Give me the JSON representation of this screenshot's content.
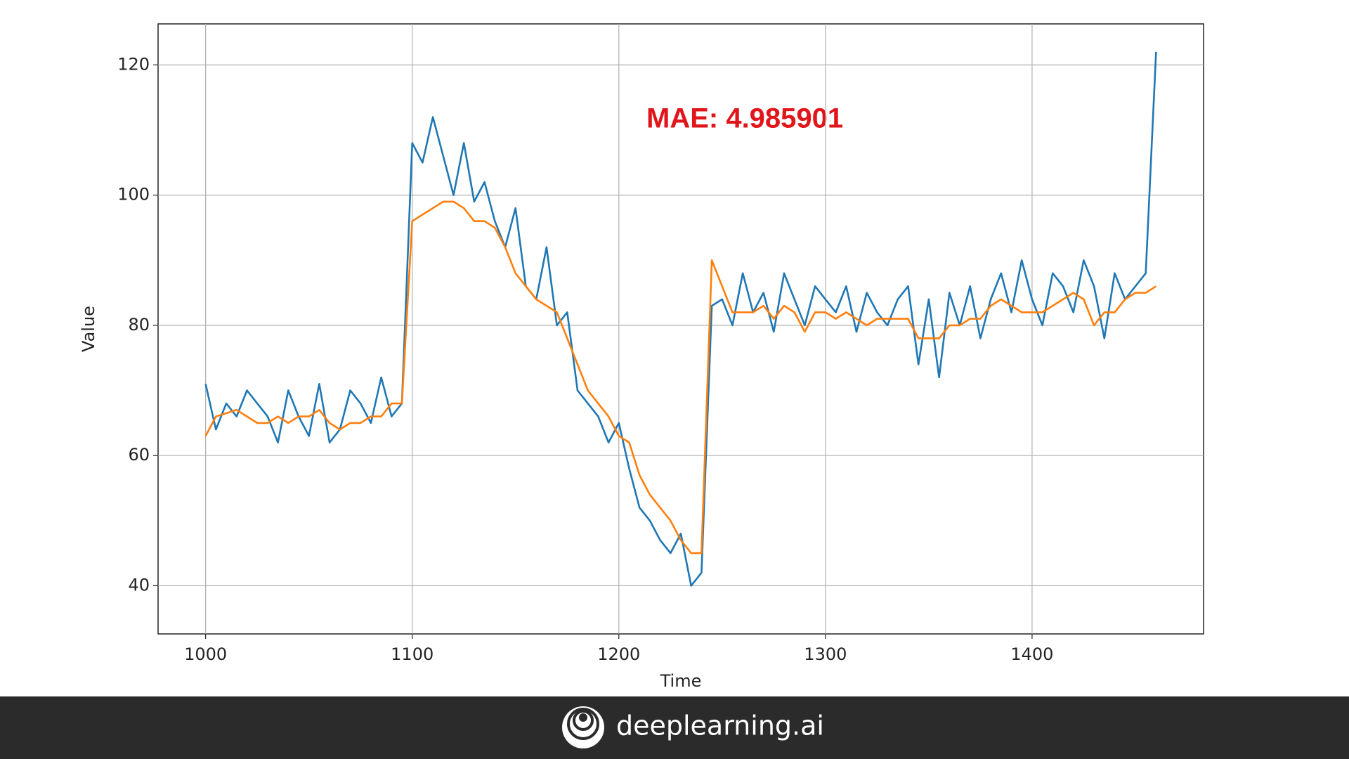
{
  "chart_data": {
    "type": "line",
    "annotation": "MAE: 4.985901",
    "xlabel": "Time",
    "ylabel": "Value",
    "x": [
      1000,
      1005,
      1010,
      1015,
      1020,
      1025,
      1030,
      1035,
      1040,
      1045,
      1050,
      1055,
      1060,
      1065,
      1070,
      1075,
      1080,
      1085,
      1090,
      1095,
      1100,
      1105,
      1110,
      1115,
      1120,
      1125,
      1130,
      1135,
      1140,
      1145,
      1150,
      1155,
      1160,
      1165,
      1170,
      1175,
      1180,
      1185,
      1190,
      1195,
      1200,
      1205,
      1210,
      1215,
      1220,
      1225,
      1230,
      1235,
      1240,
      1245,
      1250,
      1255,
      1260,
      1265,
      1270,
      1275,
      1280,
      1285,
      1290,
      1295,
      1300,
      1305,
      1310,
      1315,
      1320,
      1325,
      1330,
      1335,
      1340,
      1345,
      1350,
      1355,
      1360,
      1365,
      1370,
      1375,
      1380,
      1385,
      1390,
      1395,
      1400,
      1405,
      1410,
      1415,
      1420,
      1425,
      1430,
      1435,
      1440,
      1445,
      1450,
      1455,
      1460
    ],
    "series": [
      {
        "color": "#1f77b4",
        "values": [
          71,
          64,
          68,
          66,
          70,
          68,
          66,
          62,
          70,
          66,
          63,
          71,
          62,
          64,
          70,
          68,
          65,
          72,
          66,
          68,
          108,
          105,
          112,
          106,
          100,
          108,
          99,
          102,
          96,
          92,
          98,
          86,
          84,
          92,
          80,
          82,
          70,
          68,
          66,
          62,
          65,
          58,
          52,
          50,
          47,
          45,
          48,
          40,
          42,
          83,
          84,
          80,
          88,
          82,
          85,
          79,
          88,
          84,
          80,
          86,
          84,
          82,
          86,
          79,
          85,
          82,
          80,
          84,
          86,
          74,
          84,
          72,
          85,
          80,
          86,
          78,
          84,
          88,
          82,
          90,
          84,
          80,
          88,
          86,
          82,
          90,
          86,
          78,
          88,
          84,
          86,
          88,
          122
        ]
      },
      {
        "color": "#ff7f0e",
        "values": [
          63,
          66,
          66.5,
          67,
          66,
          65,
          65,
          66,
          65,
          66,
          66,
          67,
          65,
          64,
          65,
          65,
          66,
          66,
          68,
          68,
          96,
          97,
          98,
          99,
          99,
          98,
          96,
          96,
          95,
          92,
          88,
          86,
          84,
          83,
          82,
          78,
          74,
          70,
          68,
          66,
          63,
          62,
          57,
          54,
          52,
          50,
          47,
          45,
          45,
          90,
          86,
          82,
          82,
          82,
          83,
          81,
          83,
          82,
          79,
          82,
          82,
          81,
          82,
          81,
          80,
          81,
          81,
          81,
          81,
          78,
          78,
          78,
          80,
          80,
          81,
          81,
          83,
          84,
          83,
          82,
          82,
          82,
          83,
          84,
          85,
          84,
          80,
          82,
          82,
          84,
          85,
          85,
          86
        ]
      }
    ],
    "xlim": [
      977,
      1483
    ],
    "ylim": [
      32.6,
      126.3
    ],
    "xticks": [
      1000,
      1100,
      1200,
      1300,
      1400
    ],
    "yticks": [
      40,
      60,
      80,
      100,
      120
    ],
    "grid": true
  },
  "footer": {
    "brand": "deeplearning.ai"
  }
}
